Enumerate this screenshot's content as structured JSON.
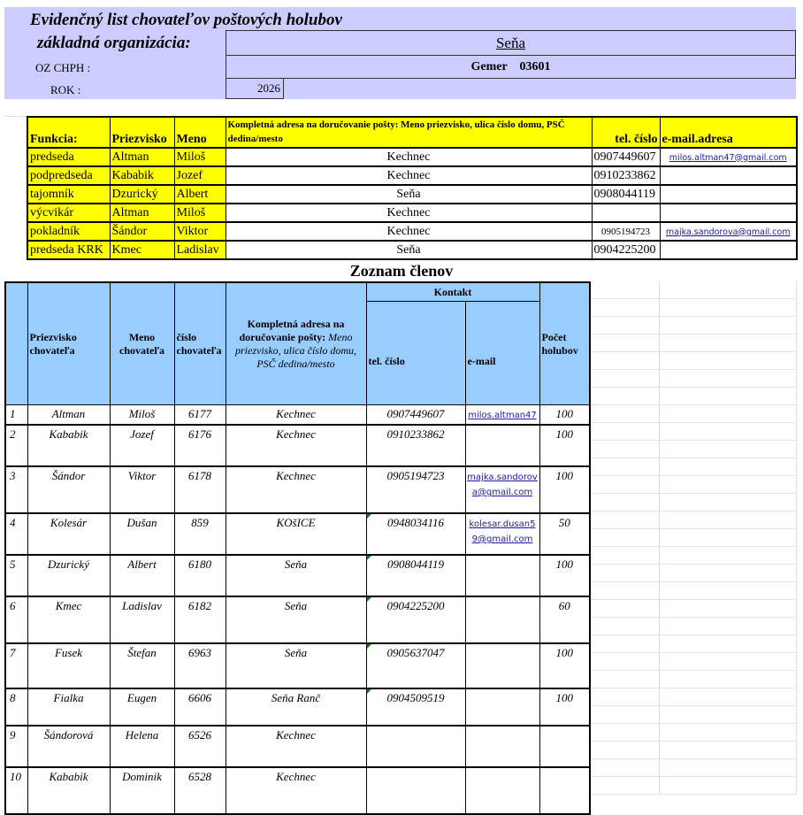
{
  "header": {
    "title": "Evidenčný list chovateľov poštových holubov",
    "org_label": "základná organizácia:",
    "org_value": "Seňa",
    "oz_label": "OZ CHPH :",
    "oz_value": "Gemer    03601",
    "rok_label": "ROK :",
    "rok_value": "2026"
  },
  "officers": {
    "headers": [
      "Funkcia:",
      "Priezvisko",
      "Meno",
      "Kompletná adresa na doručovanie pošty: Meno priezvisko, ulica číslo domu, PSČ dedina/mesto",
      "tel. číslo",
      "e-mail.adresa"
    ],
    "rows": [
      [
        "predseda",
        "Altman",
        "Miloš",
        "Kechnec",
        "0907449607",
        "milos.altman47@gmail.com"
      ],
      [
        "podpredseda",
        "Kababik",
        "Jozef",
        "Kechnec",
        "0910233862",
        ""
      ],
      [
        "tajomník",
        "Dzurický",
        "Albert",
        "Seňa",
        "0908044119",
        ""
      ],
      [
        "výcvikár",
        "Altman",
        "Miloš",
        "Kechnec",
        "",
        ""
      ],
      [
        "pokladník",
        "Šándor",
        "Viktor",
        "Kechnec",
        "0905194723",
        "majka.sandorova@gmail.com"
      ],
      [
        "predseda KRK",
        "Kmec",
        "Ladislav",
        "Seňa",
        "0904225200",
        ""
      ]
    ]
  },
  "members": {
    "title": "Zoznam členov",
    "headers": {
      "surname": "Priezvisko chovateľa",
      "name": "Meno chovateľa",
      "number": "číslo chovateľa",
      "address_bold": "Kompletná adresa na doručovanie pošty:",
      "address_italic": "Meno priezvisko, ulica číslo domu, PSČ dedina/mesto",
      "contact": "Kontakt",
      "phone": "tel. číslo",
      "email": "e-mail",
      "count": "Počet holubov"
    },
    "rows": [
      [
        "1",
        "Altman",
        "Miloš",
        "6177",
        "Kechnec",
        "0907449607",
        "milos.altman47",
        "100"
      ],
      [
        "2",
        "Kababik",
        "Jozef",
        "6176",
        "Kechnec",
        "0910233862",
        "",
        "100"
      ],
      [
        "3",
        "Šándor",
        "Viktor",
        "6178",
        "Kechnec",
        "0905194723",
        "majka.sandorova@gmail.com",
        "100"
      ],
      [
        "4",
        "Kolesár",
        "Dušan",
        "859",
        "KOšICE",
        "0948034116",
        "kolesar.dusan59@gmail.com",
        "50"
      ],
      [
        "5",
        "Dzurický",
        "Albert",
        "6180",
        "Seňa",
        "0908044119",
        "",
        "100"
      ],
      [
        "6",
        "Kmec",
        "Ladislav",
        "6182",
        "Seňa",
        "0904225200",
        "",
        "60"
      ],
      [
        "7",
        "Fusek",
        "Štefan",
        "6963",
        "Seňa",
        "0905637047",
        "",
        "100"
      ],
      [
        "8",
        "Fialka",
        "Eugen",
        "6606",
        "Seňa Ranč",
        "0904509519",
        "",
        "100"
      ],
      [
        "9",
        "Šándorová",
        "Helena",
        "6526",
        "Kechnec",
        "",
        "",
        ""
      ],
      [
        "10",
        "Kababik",
        "Dominik",
        "6528",
        "Kechnec",
        "",
        "",
        ""
      ]
    ]
  },
  "colors": {
    "header_bg": "#ccccff",
    "officer_header": "#ffff00",
    "member_header": "#99ccff",
    "link": "#1a1aa6"
  }
}
